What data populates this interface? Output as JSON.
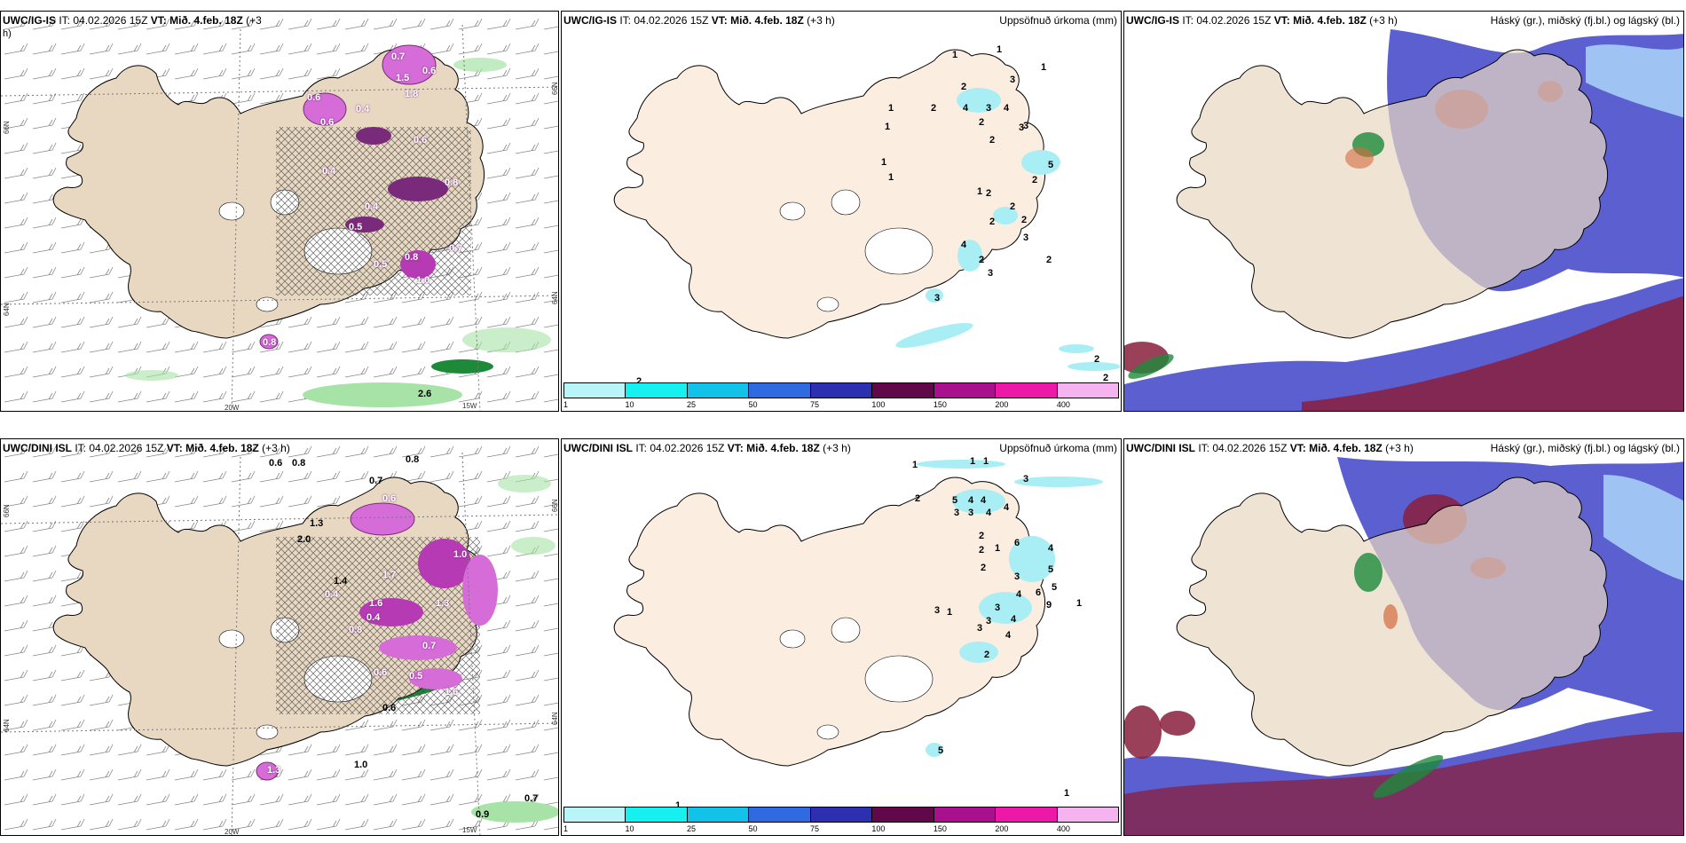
{
  "colors": {
    "land": "#e8d8c2",
    "land_light": "#fbeee0",
    "pink": "#d56cd8",
    "magenta": "#b53ab3",
    "purple": "#7a2a7a",
    "green": "#a7e2a7",
    "dark_green": "#1d8a3a",
    "cyan": "#a8eef4",
    "blue": "#5b5fd0",
    "light_blue": "#9fc4f3",
    "dark_red": "#8a1f3c",
    "scale": [
      "#b9f4f8",
      "#16f0f0",
      "#12c2e8",
      "#2f6ae0",
      "#2c2fb0",
      "#60084a",
      "#a8108e",
      "#ec19a8",
      "#f5b4f0"
    ]
  },
  "panels": [
    {
      "title_model": "UWC/IG-IS",
      "title_it": "IT: 04.02.2026 15Z",
      "title_vt_label": "VT:",
      "title_vt": "Mið. 4.feb. 18Z",
      "title_wrap": "(+3",
      "title_wrap2": "h)",
      "lon_labels": [
        "20W",
        "15W"
      ],
      "lat_labels": [
        "66N",
        "64N",
        "66N",
        "64N"
      ],
      "value_labels": [
        "0.7",
        "1.5",
        "0.6",
        "1.8",
        "0.6",
        "0.4",
        "0.6",
        "0.6",
        "0.8",
        "0.4",
        "0.4",
        "0.5",
        "0.5",
        "0.8",
        "1.0",
        "0.7",
        "0.8",
        "2.6"
      ]
    },
    {
      "title_model": "UWC/IG-IS",
      "title_it": "IT: 04.02.2026 15Z",
      "title_vt_label": "VT:",
      "title_vt": "Mið. 4.feb. 18Z",
      "title_lead": "(+3 h)",
      "right_label": "Uppsöfnuð úrkoma (mm)",
      "value_labels": [
        "1",
        "1",
        "1",
        "2",
        "3",
        "2",
        "4",
        "3",
        "4",
        "1",
        "3",
        "2",
        "3",
        "1",
        "5",
        "1",
        "2",
        "1",
        "2",
        "2",
        "1",
        "2",
        "2",
        "2",
        "3",
        "4",
        "2",
        "2",
        "3",
        "3",
        "2",
        "2",
        "2"
      ],
      "scale_ticks": [
        "1",
        "10",
        "25",
        "50",
        "75",
        "100",
        "150",
        "200",
        "400"
      ]
    },
    {
      "title_model": "UWC/IG-IS",
      "title_it": "IT: 04.02.2026 15Z",
      "title_vt_label": "VT:",
      "title_vt": "Mið. 4.feb. 18Z",
      "title_lead": "(+3 h)",
      "right_label": "Háský (gr.), miðský (fj.bl.) og lágský (bl.)"
    },
    {
      "title_model": "UWC/DINI ISL",
      "title_it": "IT: 04.02.2026 15Z",
      "title_vt_label": "VT:",
      "title_vt": "Mið. 4.feb. 18Z",
      "title_lead": "(+3 h)",
      "lon_labels": [
        "20W",
        "15W"
      ],
      "lat_labels": [
        "66N",
        "64N",
        "66N",
        "64N"
      ],
      "value_labels": [
        "0.6",
        "0.8",
        "0.8",
        "0.7",
        "0.6",
        "1.3",
        "2.0",
        "1.4",
        "0.4",
        "1.6",
        "0.8",
        "0.4",
        "1.7",
        "1.0",
        "1.3",
        "0.7",
        "0.5",
        "1.6",
        "0.6",
        "0.6",
        "1.3",
        "1.0",
        "0.7",
        "0.9"
      ]
    },
    {
      "title_model": "UWC/DINI ISL",
      "title_it": "IT: 04.02.2026 15Z",
      "title_vt_label": "VT:",
      "title_vt": "Mið. 4.feb. 18Z",
      "title_lead": "(+3 h)",
      "right_label": "Uppsöfnuð úrkoma (mm)",
      "value_labels": [
        "1",
        "1",
        "1",
        "3",
        "2",
        "5",
        "4",
        "4",
        "3",
        "3",
        "4",
        "4",
        "2",
        "2",
        "1",
        "6",
        "4",
        "2",
        "5",
        "3",
        "6",
        "4",
        "5",
        "9",
        "1",
        "1",
        "3",
        "3",
        "4",
        "3",
        "2",
        "3",
        "5",
        "4",
        "1",
        "1"
      ],
      "scale_ticks": [
        "1",
        "10",
        "25",
        "50",
        "75",
        "100",
        "150",
        "200",
        "400"
      ]
    },
    {
      "title_model": "UWC/DINI ISL",
      "title_it": "IT: 04.02.2026 15Z",
      "title_vt_label": "VT:",
      "title_vt": "Mið. 4.feb. 18Z",
      "title_lead": "(+3 h)",
      "right_label": "Háský (gr.), miðský (fj.bl.) og lágský (bl.)"
    }
  ]
}
